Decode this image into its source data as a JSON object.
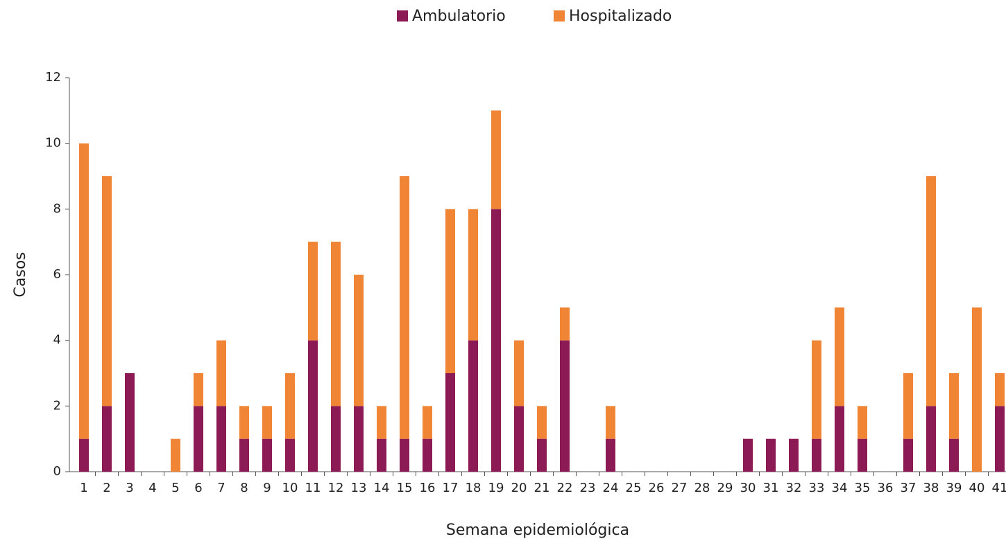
{
  "chart_data": {
    "type": "stacked_bar",
    "xlabel": "Semana epidemiológica",
    "ylabel": "Casos",
    "categories": [
      1,
      2,
      3,
      4,
      5,
      6,
      7,
      8,
      9,
      10,
      11,
      12,
      13,
      14,
      15,
      16,
      17,
      18,
      19,
      20,
      21,
      22,
      23,
      24,
      25,
      26,
      27,
      28,
      29,
      30,
      31,
      32,
      33,
      34,
      35,
      36,
      37,
      38,
      39,
      40,
      41
    ],
    "series": [
      {
        "name": "Ambulatorio",
        "color": "#8b1a55",
        "values": [
          1,
          2,
          3,
          0,
          0,
          2,
          2,
          1,
          1,
          1,
          4,
          2,
          2,
          1,
          1,
          1,
          3,
          4,
          8,
          2,
          1,
          4,
          0,
          1,
          0,
          0,
          0,
          0,
          0,
          1,
          1,
          1,
          1,
          2,
          1,
          0,
          1,
          2,
          1,
          0,
          2
        ]
      },
      {
        "name": "Hospitalizado",
        "color": "#ef8535",
        "values": [
          9,
          7,
          0,
          0,
          1,
          1,
          2,
          1,
          1,
          2,
          3,
          5,
          4,
          1,
          8,
          1,
          5,
          4,
          3,
          2,
          1,
          1,
          0,
          1,
          0,
          0,
          0,
          0,
          0,
          0,
          0,
          0,
          3,
          3,
          1,
          0,
          2,
          7,
          2,
          5,
          1
        ]
      }
    ],
    "ylim": [
      0,
      12
    ],
    "yticks": [
      0,
      2,
      4,
      6,
      8,
      10,
      12
    ],
    "grid": false,
    "legend": "top"
  }
}
